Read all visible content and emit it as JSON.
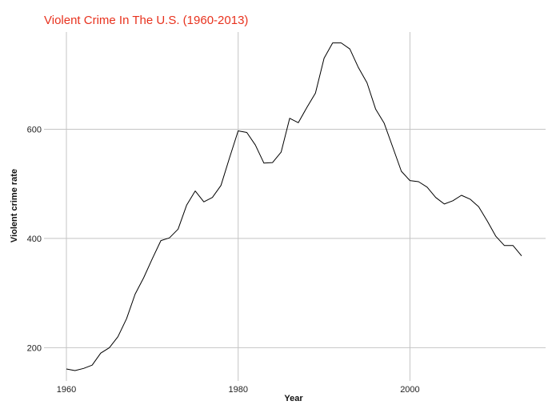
{
  "chart_data": {
    "type": "line",
    "title": "Violent Crime In The U.S. (1960-2013)",
    "xlabel": "Year",
    "ylabel": "Violent crime rate",
    "xlim": [
      1960,
      2013
    ],
    "ylim": [
      139,
      778
    ],
    "x_ticks": [
      1960,
      1980,
      2000
    ],
    "y_ticks": [
      200,
      400,
      600
    ],
    "grid": true,
    "line_color": "#000000",
    "title_color": "#e8321e",
    "x": [
      1960,
      1961,
      1962,
      1963,
      1964,
      1965,
      1966,
      1967,
      1968,
      1969,
      1970,
      1971,
      1972,
      1973,
      1974,
      1975,
      1976,
      1977,
      1978,
      1979,
      1980,
      1981,
      1982,
      1983,
      1984,
      1985,
      1986,
      1987,
      1988,
      1989,
      1990,
      1991,
      1992,
      1993,
      1994,
      1995,
      1996,
      1997,
      1998,
      1999,
      2000,
      2001,
      2002,
      2003,
      2004,
      2005,
      2006,
      2007,
      2008,
      2009,
      2010,
      2011,
      2012,
      2013
    ],
    "values": [
      161,
      158,
      162,
      168,
      190,
      200,
      220,
      253,
      298,
      328,
      363,
      396,
      401,
      417,
      461,
      487,
      467,
      475,
      497,
      548,
      597,
      594,
      571,
      538,
      539,
      558,
      620,
      612,
      640,
      666,
      730,
      758,
      758,
      747,
      713,
      685,
      637,
      611,
      567,
      523,
      506,
      504,
      494,
      475,
      463,
      469,
      479,
      472,
      458,
      432,
      404,
      387,
      387,
      368
    ]
  }
}
